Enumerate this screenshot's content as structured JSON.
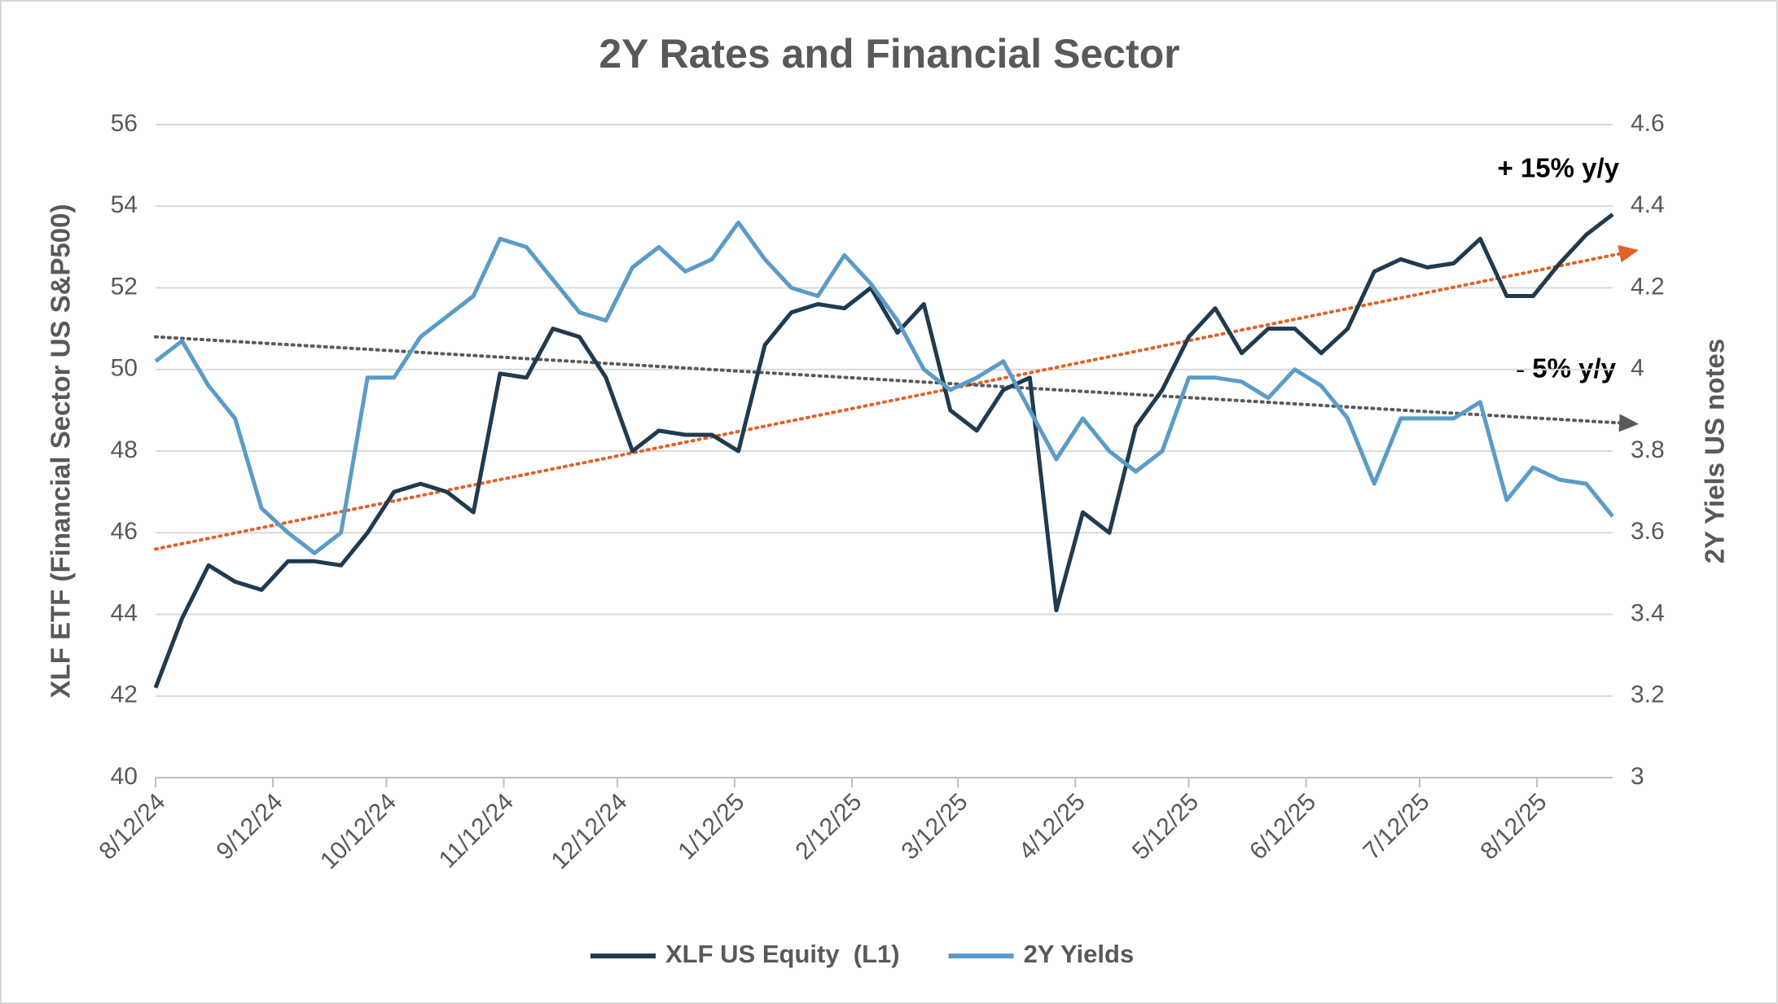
{
  "chart_data": {
    "type": "line",
    "title": "2Y Rates and Financial Sector",
    "y_label": "XLF ETF (Financial Sector US S&P500)",
    "y2_label": "2Y Yiels US notes",
    "x": [
      "2024-08-12",
      "2024-08-19",
      "2024-08-26",
      "2024-09-02",
      "2024-09-09",
      "2024-09-16",
      "2024-09-23",
      "2024-09-30",
      "2024-10-07",
      "2024-10-14",
      "2024-10-21",
      "2024-10-28",
      "2024-11-04",
      "2024-11-11",
      "2024-11-18",
      "2024-11-25",
      "2024-12-02",
      "2024-12-09",
      "2024-12-16",
      "2024-12-23",
      "2024-12-30",
      "2025-01-06",
      "2025-01-13",
      "2025-01-20",
      "2025-01-27",
      "2025-02-03",
      "2025-02-10",
      "2025-02-17",
      "2025-02-24",
      "2025-03-03",
      "2025-03-10",
      "2025-03-17",
      "2025-03-24",
      "2025-03-31",
      "2025-04-07",
      "2025-04-14",
      "2025-04-21",
      "2025-04-28",
      "2025-05-05",
      "2025-05-12",
      "2025-05-19",
      "2025-05-26",
      "2025-06-02",
      "2025-06-09",
      "2025-06-16",
      "2025-06-23",
      "2025-06-30",
      "2025-07-07",
      "2025-07-14",
      "2025-07-21",
      "2025-07-28",
      "2025-08-04",
      "2025-08-11",
      "2025-08-18",
      "2025-08-25",
      "2025-09-01"
    ],
    "series": [
      {
        "name": "XLF US Equity  (L1)",
        "color": "#203a4f",
        "axis": "y",
        "values": [
          42.2,
          43.9,
          45.2,
          44.8,
          44.6,
          45.3,
          45.3,
          45.2,
          46.0,
          47.0,
          47.2,
          47.0,
          46.5,
          49.9,
          49.8,
          51.0,
          50.8,
          49.8,
          48.0,
          48.5,
          48.4,
          48.4,
          48.0,
          50.6,
          51.4,
          51.6,
          51.5,
          52.0,
          50.9,
          51.6,
          49.0,
          48.5,
          49.5,
          49.8,
          44.1,
          46.5,
          46.0,
          48.6,
          49.5,
          50.8,
          51.5,
          50.4,
          51.0,
          51.0,
          50.4,
          51.0,
          52.4,
          52.7,
          52.5,
          52.6,
          53.2,
          51.8,
          51.8,
          52.6,
          53.3,
          53.8
        ]
      },
      {
        "name": "2Y Yields",
        "color": "#5b9bc8",
        "axis": "y2",
        "values": [
          4.02,
          4.07,
          3.96,
          3.88,
          3.66,
          3.6,
          3.55,
          3.6,
          3.98,
          3.98,
          4.08,
          4.13,
          4.18,
          4.32,
          4.3,
          4.22,
          4.14,
          4.12,
          4.25,
          4.3,
          4.24,
          4.27,
          4.36,
          4.27,
          4.2,
          4.18,
          4.28,
          4.21,
          4.12,
          4.0,
          3.95,
          3.98,
          4.02,
          3.9,
          3.78,
          3.88,
          3.8,
          3.75,
          3.8,
          3.98,
          3.98,
          3.97,
          3.93,
          4.0,
          3.96,
          3.88,
          3.72,
          3.88,
          3.88,
          3.88,
          3.92,
          3.68,
          3.76,
          3.73,
          3.72,
          3.64
        ]
      }
    ],
    "trendlines": [
      {
        "color": "#e0622a",
        "axis": "y",
        "values": [
          45.6,
          52.8
        ]
      },
      {
        "color": "#595959",
        "axis": "y2",
        "values": [
          4.08,
          3.87
        ]
      }
    ],
    "annotations": [
      "+ 15% y/y",
      "- 5% y/y"
    ],
    "xlim": [
      "2024-08-12",
      "2025-09-01"
    ],
    "xticks": [
      {
        "value": "2024-08-12",
        "label": "8/12/24"
      },
      {
        "value": "2024-09-12",
        "label": "9/12/24"
      },
      {
        "value": "2024-10-12",
        "label": "10/12/24"
      },
      {
        "value": "2024-11-12",
        "label": "11/12/24"
      },
      {
        "value": "2024-12-12",
        "label": "12/12/24"
      },
      {
        "value": "2025-01-12",
        "label": "1/12/25"
      },
      {
        "value": "2025-02-12",
        "label": "2/12/25"
      },
      {
        "value": "2025-03-12",
        "label": "3/12/25"
      },
      {
        "value": "2025-04-12",
        "label": "4/12/25"
      },
      {
        "value": "2025-05-12",
        "label": "5/12/25"
      },
      {
        "value": "2025-06-12",
        "label": "6/12/25"
      },
      {
        "value": "2025-07-12",
        "label": "7/12/25"
      },
      {
        "value": "2025-08-12",
        "label": "8/12/25"
      }
    ],
    "ylim": [
      40,
      56
    ],
    "yticks": [
      40,
      42,
      44,
      46,
      48,
      50,
      52,
      54,
      56
    ],
    "y2lim": [
      3,
      4.6
    ],
    "y2ticks": [
      3,
      3.2,
      3.4,
      3.6,
      3.8,
      4,
      4.2,
      4.4,
      4.6
    ],
    "grid": true,
    "legend": "bottom"
  }
}
